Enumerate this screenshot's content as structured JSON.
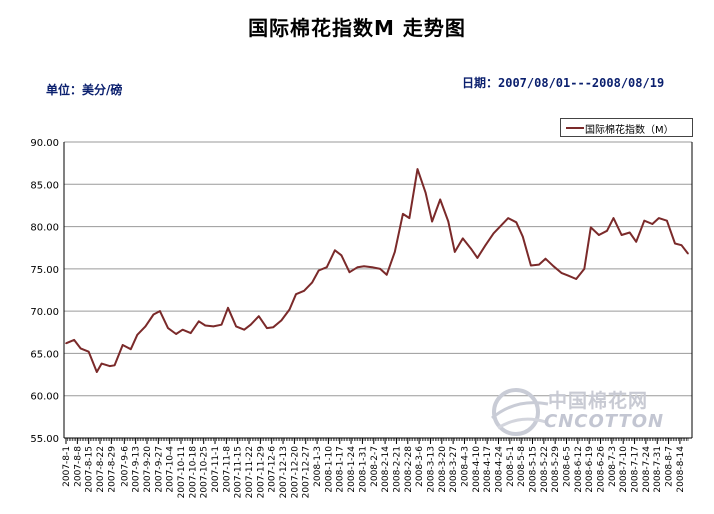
{
  "header": {
    "title": "国际棉花指数M 走势图",
    "unit": "单位：美分/磅",
    "date_range": "日期：2007/08/01---2008/08/19"
  },
  "watermark": {
    "cn": "中国棉花网",
    "en": "CNCOTTON"
  },
  "colors": {
    "line": "#7b2a2a",
    "grid": "#9a9a9a",
    "axis": "#000000"
  },
  "chart_data": {
    "type": "line",
    "title": "国际棉花指数M 走势图",
    "ylabel": "单位：美分/磅",
    "ylim": [
      55,
      90
    ],
    "yticks": [
      "55.00",
      "60.00",
      "65.00",
      "70.00",
      "75.00",
      "80.00",
      "85.00",
      "90.00"
    ],
    "grid": "horizontal",
    "legend": {
      "position": "top-right",
      "entries": [
        "国际棉花指数（M）"
      ]
    },
    "x_tick_labels": [
      "2007-8-1",
      "2007-8-8",
      "2007-8-15",
      "2007-8-22",
      "2007-8-29",
      "2007-9-6",
      "2007-9-13",
      "2007-9-20",
      "2007-9-27",
      "2007-10-4",
      "2007-10-11",
      "2007-10-18",
      "2007-10-25",
      "2007-11-1",
      "2007-11-8",
      "2007-11-15",
      "2007-11-22",
      "2007-11-29",
      "2007-12-6",
      "2007-12-13",
      "2007-12-20",
      "2007-12-27",
      "2008-1-3",
      "2008-1-10",
      "2008-1-17",
      "2008-1-24",
      "2008-1-31",
      "2008-2-7",
      "2008-2-14",
      "2008-2-21",
      "2008-2-28",
      "2008-3-6",
      "2008-3-13",
      "2008-3-20",
      "2008-3-27",
      "2008-4-3",
      "2008-4-10",
      "2008-4-17",
      "2008-4-24",
      "2008-5-1",
      "2008-5-8",
      "2008-5-15",
      "2008-5-22",
      "2008-5-29",
      "2008-6-5",
      "2008-6-12",
      "2008-6-19",
      "2008-6-26",
      "2008-7-3",
      "2008-7-10",
      "2008-7-17",
      "2008-7-24",
      "2008-7-31",
      "2008-8-7",
      "2008-8-14"
    ],
    "series": [
      {
        "name": "国际棉花指数（M）",
        "x": [
          "2007-8-1",
          "2007-8-6",
          "2007-8-10",
          "2007-8-15",
          "2007-8-20",
          "2007-8-23",
          "2007-8-28",
          "2007-8-31",
          "2007-9-5",
          "2007-9-10",
          "2007-9-14",
          "2007-9-19",
          "2007-9-24",
          "2007-9-28",
          "2007-10-3",
          "2007-10-8",
          "2007-10-12",
          "2007-10-17",
          "2007-10-22",
          "2007-10-26",
          "2007-10-31",
          "2007-11-5",
          "2007-11-9",
          "2007-11-14",
          "2007-11-19",
          "2007-11-23",
          "2007-11-28",
          "2007-12-3",
          "2007-12-7",
          "2007-12-12",
          "2007-12-17",
          "2007-12-21",
          "2007-12-26",
          "2007-12-31",
          "2008-1-4",
          "2008-1-9",
          "2008-1-14",
          "2008-1-18",
          "2008-1-23",
          "2008-1-28",
          "2008-2-1",
          "2008-2-6",
          "2008-2-11",
          "2008-2-15",
          "2008-2-20",
          "2008-2-25",
          "2008-2-29",
          "2008-3-5",
          "2008-3-10",
          "2008-3-14",
          "2008-3-19",
          "2008-3-24",
          "2008-3-28",
          "2008-4-2",
          "2008-4-7",
          "2008-4-11",
          "2008-4-16",
          "2008-4-21",
          "2008-4-25",
          "2008-4-30",
          "2008-5-5",
          "2008-5-9",
          "2008-5-14",
          "2008-5-19",
          "2008-5-23",
          "2008-5-28",
          "2008-6-2",
          "2008-6-6",
          "2008-6-11",
          "2008-6-16",
          "2008-6-20",
          "2008-6-25",
          "2008-6-30",
          "2008-7-4",
          "2008-7-9",
          "2008-7-14",
          "2008-7-18",
          "2008-7-23",
          "2008-7-28",
          "2008-8-1",
          "2008-8-6",
          "2008-8-11",
          "2008-8-15",
          "2008-8-19"
        ],
        "values": [
          66.2,
          66.6,
          65.6,
          65.2,
          62.8,
          63.8,
          63.5,
          63.6,
          66.0,
          65.5,
          67.2,
          68.2,
          69.6,
          70.0,
          68.0,
          67.3,
          67.8,
          67.4,
          68.8,
          68.3,
          68.2,
          68.4,
          70.4,
          68.2,
          67.8,
          68.4,
          69.4,
          68.0,
          68.1,
          68.9,
          70.2,
          72.0,
          72.4,
          73.4,
          74.8,
          75.2,
          77.2,
          76.6,
          74.6,
          75.2,
          75.3,
          75.2,
          75.0,
          74.3,
          77.0,
          81.5,
          81.0,
          86.8,
          84.0,
          80.6,
          83.2,
          80.6,
          77.0,
          78.6,
          77.4,
          76.3,
          77.8,
          79.2,
          80.0,
          81.0,
          80.5,
          78.8,
          75.4,
          75.5,
          76.2,
          75.3,
          74.5,
          74.2,
          73.8,
          75.0,
          79.9,
          79.0,
          79.5,
          81.0,
          79.0,
          79.3,
          78.2,
          80.7,
          80.3,
          81.0,
          80.7,
          78.0,
          77.8,
          76.8
        ]
      }
    ]
  }
}
